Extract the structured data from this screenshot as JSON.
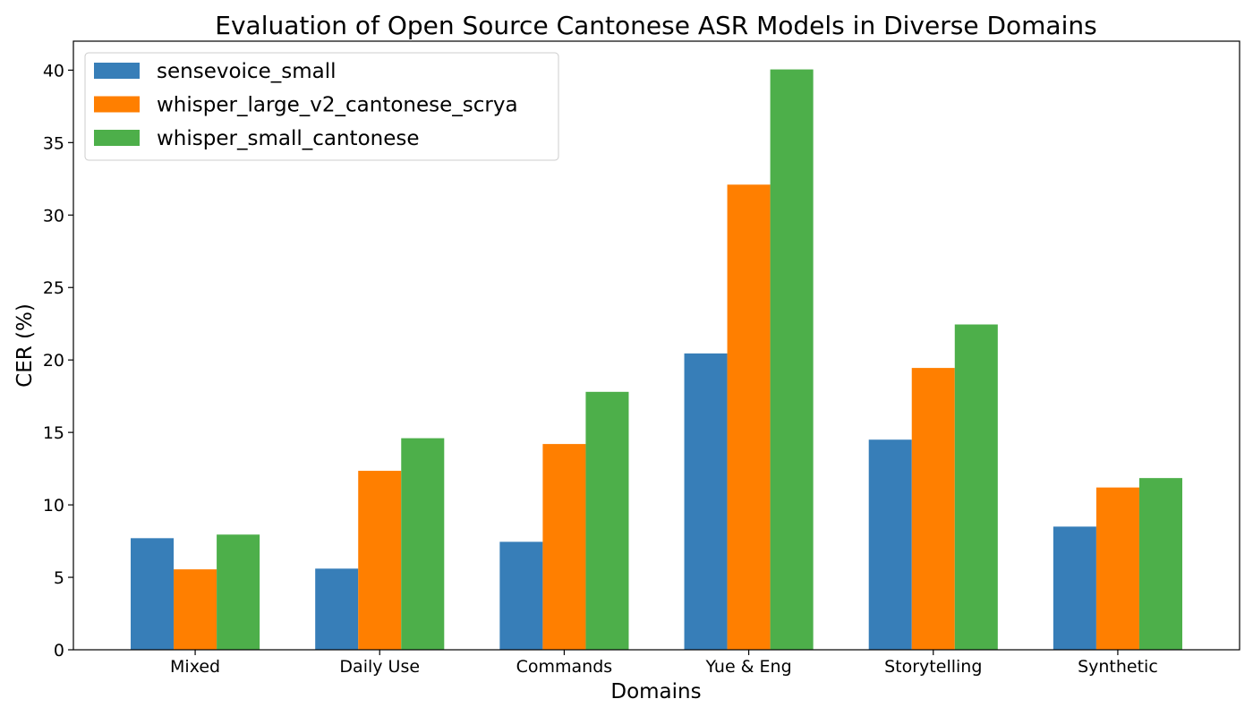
{
  "chart_data": {
    "type": "bar",
    "title": "Evaluation of Open Source Cantonese ASR Models in Diverse Domains",
    "xlabel": "Domains",
    "ylabel": "CER (%)",
    "ylim": [
      0,
      42
    ],
    "yticks": [
      0,
      5,
      10,
      15,
      20,
      25,
      30,
      35,
      40
    ],
    "grid": false,
    "legend_position": "top-left",
    "categories": [
      "Mixed",
      "Daily Use",
      "Commands",
      "Yue & Eng",
      "Storytelling",
      "Synthetic"
    ],
    "series": [
      {
        "name": "sensevoice_small",
        "color": "#377eb8",
        "values": [
          7.7,
          5.6,
          7.45,
          20.45,
          14.5,
          8.5
        ]
      },
      {
        "name": "whisper_large_v2_cantonese_scrya",
        "color": "#ff7f00",
        "values": [
          5.55,
          12.35,
          14.2,
          32.1,
          19.45,
          11.2
        ]
      },
      {
        "name": "whisper_small_cantonese",
        "color": "#4daf4a",
        "values": [
          7.95,
          14.6,
          17.8,
          40.05,
          22.45,
          11.85
        ]
      }
    ]
  }
}
